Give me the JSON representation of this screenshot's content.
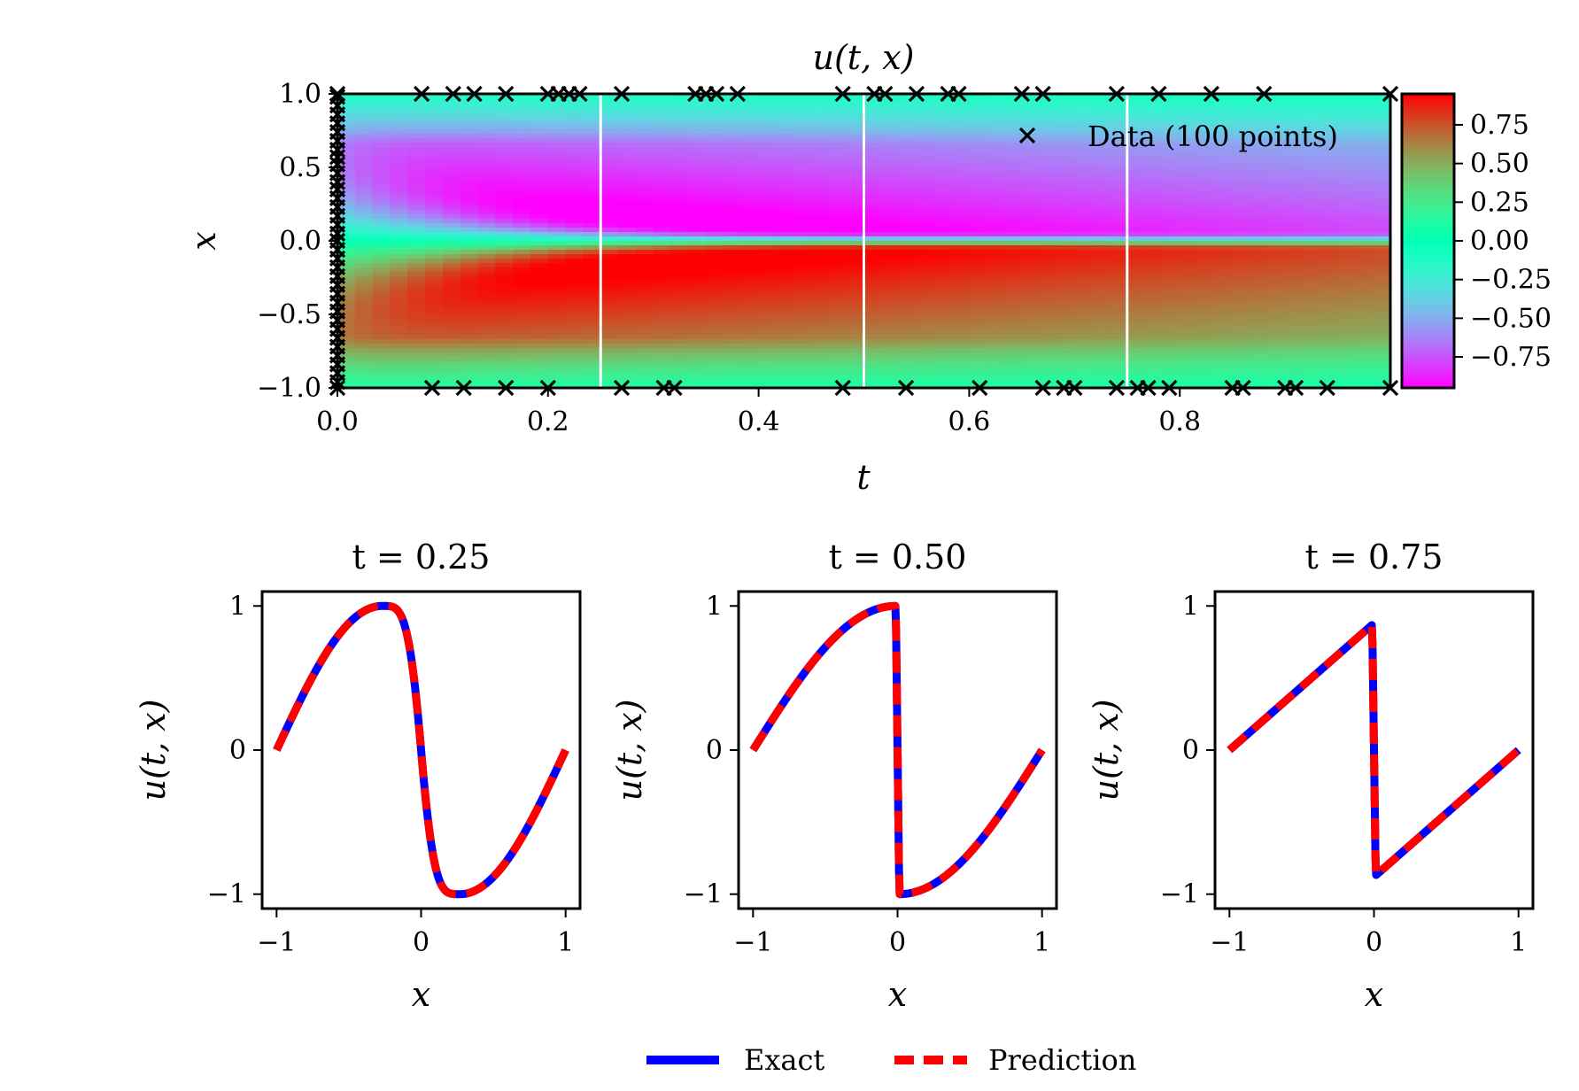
{
  "chart_data": [
    {
      "type": "heatmap",
      "title": "u(t, x)",
      "xlabel": "t",
      "ylabel": "x",
      "xlim": [
        0.0,
        1.0
      ],
      "ylim": [
        -1.0,
        1.0
      ],
      "xticks": [
        "0.0",
        "0.2",
        "0.4",
        "0.6",
        "0.8"
      ],
      "xtick_values": [
        0.0,
        0.2,
        0.4,
        0.6,
        0.8
      ],
      "yticks": [
        "1.0",
        "0.5",
        "0.0",
        "−0.5",
        "−1.0"
      ],
      "ytick_values": [
        1.0,
        0.5,
        0.0,
        -0.5,
        -1.0
      ],
      "colormap": "rainbow",
      "colorbar": {
        "range": [
          -0.95,
          0.95
        ],
        "ticks": [
          "0.75",
          "0.50",
          "0.25",
          "0.00",
          "−0.25",
          "−0.50",
          "−0.75"
        ],
        "tick_values": [
          0.75,
          0.5,
          0.25,
          0.0,
          -0.25,
          -0.5,
          -0.75
        ]
      },
      "vertical_lines_t": [
        0.25,
        0.5,
        0.75
      ],
      "legend": {
        "label": "Data (100 points)",
        "placement": "upper-right"
      },
      "data_points_top_t": [
        0.0,
        0.08,
        0.11,
        0.13,
        0.16,
        0.2,
        0.21,
        0.22,
        0.23,
        0.27,
        0.34,
        0.35,
        0.36,
        0.38,
        0.48,
        0.51,
        0.52,
        0.55,
        0.58,
        0.59,
        0.65,
        0.67,
        0.74,
        0.78,
        0.83,
        0.88,
        1.0
      ],
      "data_points_bottom_t": [
        0.0,
        0.09,
        0.12,
        0.16,
        0.2,
        0.27,
        0.31,
        0.32,
        0.48,
        0.54,
        0.61,
        0.67,
        0.69,
        0.7,
        0.74,
        0.76,
        0.77,
        0.79,
        0.85,
        0.86,
        0.9,
        0.91,
        0.94,
        1.0
      ],
      "data_points_left_x": [
        0.98,
        0.92,
        0.86,
        0.8,
        0.74,
        0.68,
        0.62,
        0.57,
        0.52,
        0.46,
        0.4,
        0.35,
        0.29,
        0.23,
        0.17,
        0.11,
        0.05,
        0.0,
        -0.06,
        -0.12,
        -0.18,
        -0.24,
        -0.3,
        -0.36,
        -0.42,
        -0.48,
        -0.54,
        -0.6,
        -0.66,
        -0.72,
        -0.78,
        -0.84,
        -0.9,
        -0.96
      ]
    },
    {
      "type": "line",
      "title": "t = 0.25",
      "xlabel": "x",
      "ylabel": "u(t, x)",
      "xlim": [
        -1.1,
        1.1
      ],
      "ylim": [
        -1.1,
        1.1
      ],
      "xticks": [
        "−1",
        "0",
        "1"
      ],
      "yticks": [
        "1",
        "0",
        "−1"
      ],
      "t": 0.25,
      "series": [
        {
          "name": "Exact",
          "color": "#0000ff"
        },
        {
          "name": "Prediction",
          "color": "#ff0000"
        }
      ]
    },
    {
      "type": "line",
      "title": "t = 0.50",
      "xlabel": "x",
      "ylabel": "u(t, x)",
      "xlim": [
        -1.1,
        1.1
      ],
      "ylim": [
        -1.1,
        1.1
      ],
      "xticks": [
        "−1",
        "0",
        "1"
      ],
      "yticks": [
        "1",
        "0",
        "−1"
      ],
      "t": 0.5,
      "series": [
        {
          "name": "Exact",
          "color": "#0000ff"
        },
        {
          "name": "Prediction",
          "color": "#ff0000"
        }
      ]
    },
    {
      "type": "line",
      "title": "t = 0.75",
      "xlabel": "x",
      "ylabel": "u(t, x)",
      "xlim": [
        -1.1,
        1.1
      ],
      "ylim": [
        -1.1,
        1.1
      ],
      "xticks": [
        "−1",
        "0",
        "1"
      ],
      "yticks": [
        "1",
        "0",
        "−1"
      ],
      "t": 0.75,
      "series": [
        {
          "name": "Exact",
          "color": "#0000ff"
        },
        {
          "name": "Prediction",
          "color": "#ff0000"
        }
      ]
    }
  ],
  "legend_bottom": {
    "exact_label": "Exact",
    "prediction_label": "Prediction"
  }
}
